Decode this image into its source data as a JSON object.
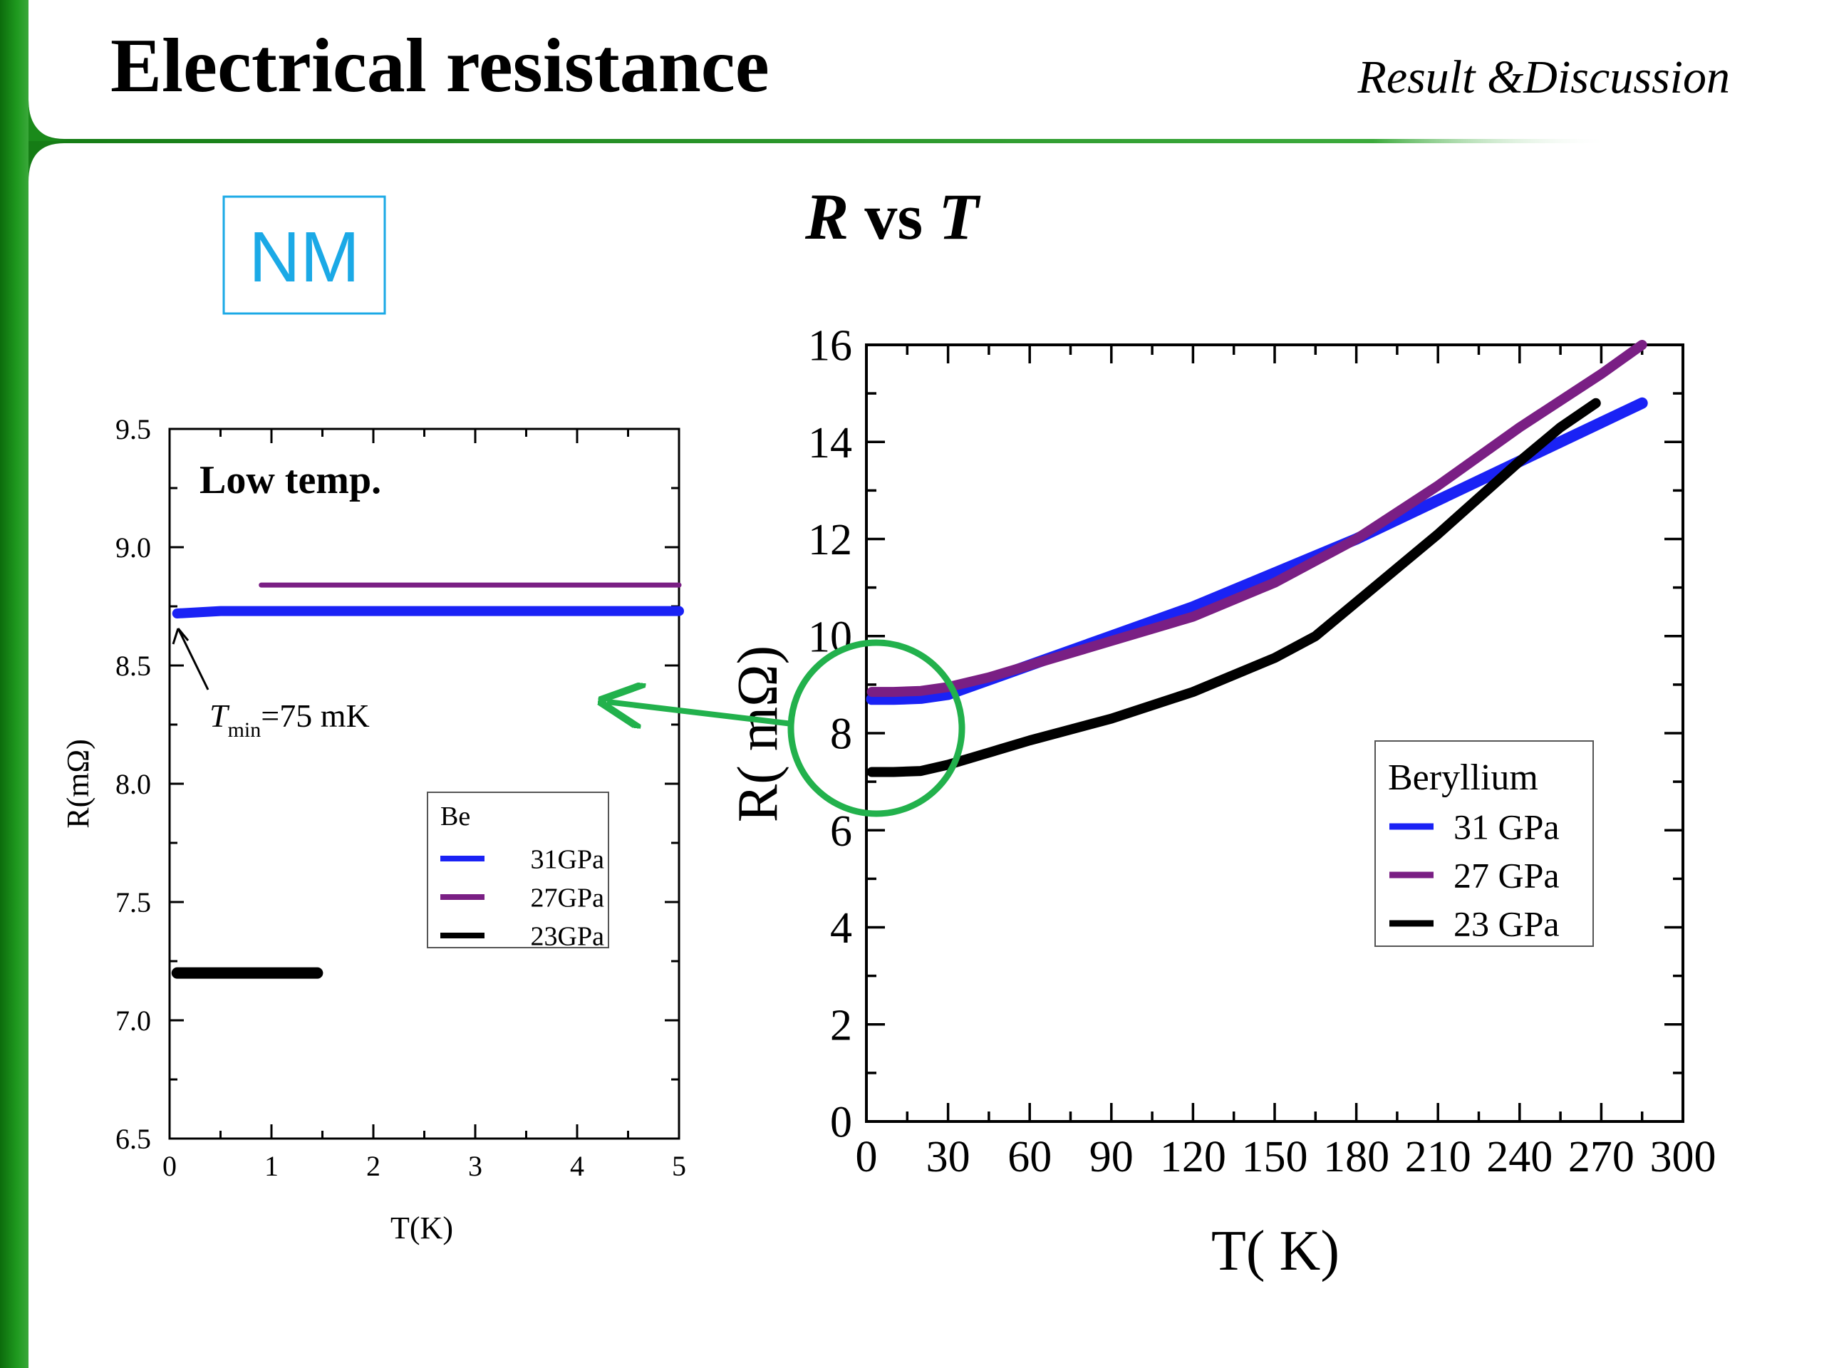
{
  "slide": {
    "title": "Electrical resistance",
    "section": "Result &Discussion",
    "tag": "NM",
    "chart_heading": {
      "r": "R",
      "vs": "vs",
      "t": "T"
    }
  },
  "colors": {
    "accent_green": "#1a8a1a",
    "tag_blue": "#1ba9e6",
    "circle_green": "#22b14c",
    "series_31": "#1a22f5",
    "series_27": "#7a1f84",
    "series_23": "#000000"
  },
  "chart_data": [
    {
      "type": "line",
      "title": "Low temp.",
      "xlabel": "T(K)",
      "ylabel": "R(mΩ)",
      "xlim": [
        0,
        5
      ],
      "ylim": [
        6.5,
        9.5
      ],
      "xticks": [
        0,
        1,
        2,
        3,
        4,
        5
      ],
      "yticks": [
        6.5,
        7.0,
        7.5,
        8.0,
        8.5,
        9.0,
        9.5
      ],
      "legend": {
        "title": "Be",
        "placement": "center-right"
      },
      "annotation": {
        "text": "T",
        "sub": "min",
        "rest": "=75 mK",
        "target": [
          0.075,
          8.72
        ]
      },
      "series": [
        {
          "name": "31GPa",
          "x": [
            0.075,
            0.5,
            1.0,
            1.5,
            2.0,
            2.5,
            3.0,
            3.5,
            4.0,
            4.5,
            5.0
          ],
          "y": [
            8.72,
            8.73,
            8.73,
            8.73,
            8.73,
            8.73,
            8.73,
            8.73,
            8.73,
            8.73,
            8.73
          ]
        },
        {
          "name": "27GPa",
          "x": [
            0.9,
            2.0,
            3.0,
            4.0,
            5.0
          ],
          "y": [
            8.84,
            8.84,
            8.84,
            8.84,
            8.84
          ]
        },
        {
          "name": "23GPa",
          "x": [
            0.075,
            0.5,
            1.0,
            1.45
          ],
          "y": [
            7.2,
            7.2,
            7.2,
            7.2
          ]
        }
      ]
    },
    {
      "type": "line",
      "title": "R vs T",
      "xlabel": "T( K)",
      "ylabel": "R( mΩ)",
      "xlim": [
        0,
        300
      ],
      "ylim": [
        0,
        16
      ],
      "xticks": [
        0,
        30,
        60,
        90,
        120,
        150,
        180,
        210,
        240,
        270,
        300
      ],
      "yticks": [
        0,
        2,
        4,
        6,
        8,
        10,
        12,
        14,
        16
      ],
      "legend": {
        "title": "Beryllium",
        "placement": "center-right"
      },
      "series": [
        {
          "name": "31 GPa",
          "x": [
            2,
            10,
            20,
            30,
            45,
            60,
            90,
            120,
            150,
            180,
            210,
            240,
            270,
            285
          ],
          "y": [
            8.7,
            8.7,
            8.72,
            8.8,
            9.1,
            9.4,
            10.0,
            10.6,
            11.3,
            12.0,
            12.8,
            13.6,
            14.4,
            14.8
          ]
        },
        {
          "name": "27 GPa",
          "x": [
            2,
            10,
            20,
            30,
            45,
            60,
            90,
            120,
            150,
            180,
            210,
            240,
            270,
            285
          ],
          "y": [
            8.85,
            8.85,
            8.87,
            8.95,
            9.15,
            9.4,
            9.9,
            10.4,
            11.1,
            12.0,
            13.1,
            14.3,
            15.4,
            16.0
          ]
        },
        {
          "name": "23 GPa",
          "x": [
            2,
            10,
            20,
            30,
            45,
            60,
            90,
            120,
            150,
            165,
            180,
            210,
            240,
            255,
            268
          ],
          "y": [
            7.2,
            7.2,
            7.22,
            7.35,
            7.6,
            7.85,
            8.3,
            8.85,
            9.55,
            10.0,
            10.7,
            12.1,
            13.6,
            14.3,
            14.8
          ]
        }
      ]
    }
  ]
}
